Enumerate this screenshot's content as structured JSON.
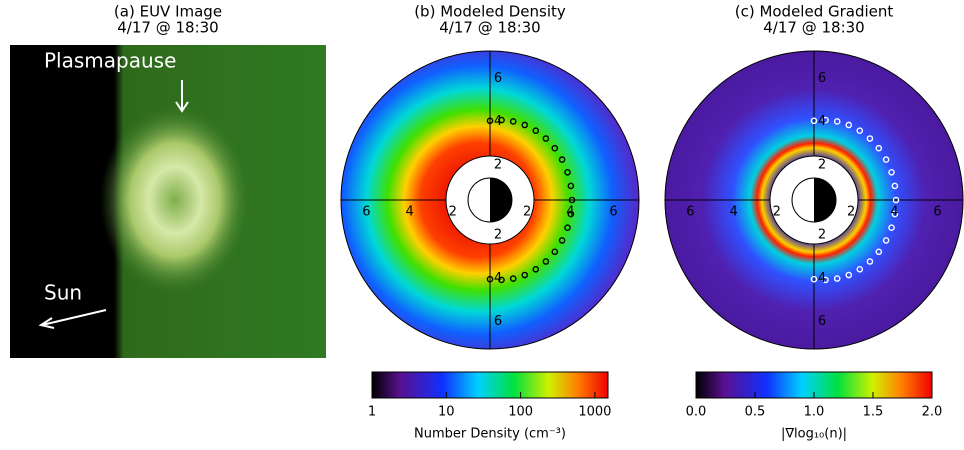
{
  "panels": [
    {
      "title": "(a) EUV Image",
      "time": "4/17 @ 18:30",
      "annotations": [
        "Plasmapause",
        "Sun"
      ]
    },
    {
      "title": "(b) Modeled Density",
      "time": "4/17 @ 18:30",
      "radial_ticks": [
        2,
        4,
        6
      ],
      "colorbar": {
        "label": "Number Density (cm⁻³)",
        "log": true,
        "clim": [
          1,
          1500
        ],
        "ticks": [
          1,
          10,
          100,
          1000
        ]
      }
    },
    {
      "title": "(c) Modeled Gradient",
      "time": "4/17 @ 18:30",
      "radial_ticks": [
        2,
        4,
        6
      ],
      "colorbar": {
        "label": "|∇log₁₀(n)|",
        "log": false,
        "clim": [
          0,
          2
        ],
        "ticks": [
          {
            "value": 0,
            "label": "0.0"
          },
          {
            "value": 0.5,
            "label": "0.5"
          },
          {
            "value": 1,
            "label": "1.0"
          },
          {
            "value": 1.5,
            "label": "1.5"
          },
          {
            "value": 2,
            "label": "2.0"
          }
        ]
      }
    }
  ]
}
